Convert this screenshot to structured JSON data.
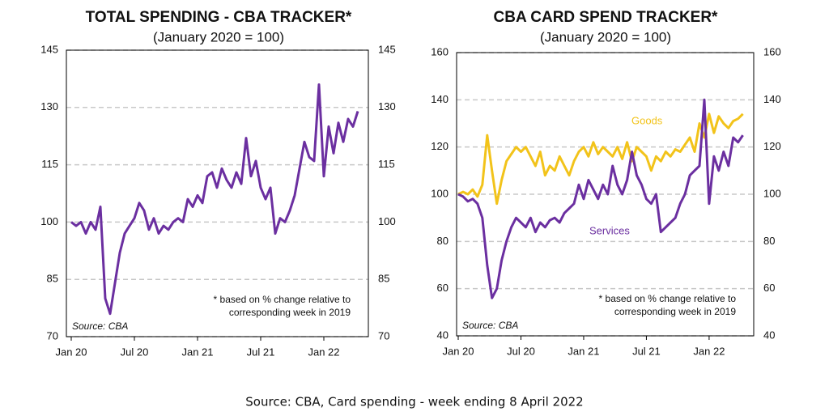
{
  "chart_data": [
    {
      "type": "line",
      "title": "TOTAL SPENDING  - CBA TRACKER*",
      "subtitle": "(January 2020 = 100)",
      "categories": [
        "Jan 20",
        null,
        null,
        null,
        null,
        null,
        null,
        null,
        null,
        null,
        null,
        null,
        null,
        "Jul 20",
        null,
        null,
        null,
        null,
        null,
        null,
        null,
        null,
        null,
        null,
        null,
        null,
        "Jan 21",
        null,
        null,
        null,
        null,
        null,
        null,
        null,
        null,
        null,
        null,
        null,
        null,
        "Jul 21",
        null,
        null,
        null,
        null,
        null,
        null,
        null,
        null,
        null,
        null,
        null,
        null,
        "Jan 22",
        null,
        null,
        null,
        null,
        null,
        null,
        null
      ],
      "series": [
        {
          "name": "Total spending",
          "color": "#6b2fa0",
          "values": [
            100,
            99,
            100,
            97,
            100,
            98,
            104,
            80,
            76,
            84,
            92,
            97,
            99,
            101,
            105,
            103,
            98,
            101,
            97,
            99,
            98,
            100,
            101,
            100,
            106,
            104,
            107,
            105,
            112,
            113,
            109,
            114,
            111,
            109,
            113,
            110,
            122,
            112,
            116,
            109,
            106,
            109,
            97,
            101,
            100,
            103,
            107,
            114,
            121,
            117,
            116,
            136,
            112,
            125,
            118,
            126,
            121,
            127,
            125,
            129
          ]
        }
      ],
      "ylim": [
        70,
        145
      ],
      "yticks": [
        70,
        85,
        100,
        115,
        130,
        145
      ],
      "y2lim": [
        70,
        145
      ],
      "y2ticks": [
        70,
        85,
        100,
        115,
        130,
        145
      ],
      "grid": true,
      "show_legend_names": false,
      "annotations": [
        "*   based on % change relative to",
        "corresponding week in 2019"
      ],
      "source": "Source:  CBA"
    },
    {
      "type": "line",
      "title": "CBA CARD SPEND TRACKER*",
      "subtitle": "(January 2020 = 100)",
      "categories": [
        "Jan 20",
        null,
        null,
        null,
        null,
        null,
        null,
        null,
        null,
        null,
        null,
        null,
        null,
        "Jul 20",
        null,
        null,
        null,
        null,
        null,
        null,
        null,
        null,
        null,
        null,
        null,
        null,
        "Jan 21",
        null,
        null,
        null,
        null,
        null,
        null,
        null,
        null,
        null,
        null,
        null,
        null,
        "Jul 21",
        null,
        null,
        null,
        null,
        null,
        null,
        null,
        null,
        null,
        null,
        null,
        null,
        "Jan 22",
        null,
        null,
        null,
        null,
        null,
        null,
        null
      ],
      "series": [
        {
          "name": "Goods",
          "color": "#f2c31a",
          "values": [
            100,
            101,
            100,
            102,
            99,
            104,
            125,
            110,
            96,
            106,
            114,
            117,
            120,
            118,
            120,
            116,
            112,
            118,
            108,
            112,
            110,
            116,
            112,
            108,
            114,
            118,
            120,
            116,
            122,
            117,
            120,
            118,
            116,
            120,
            115,
            122,
            114,
            120,
            118,
            116,
            110,
            116,
            114,
            118,
            116,
            119,
            118,
            121,
            124,
            118,
            130,
            124,
            134,
            126,
            133,
            130,
            128,
            131,
            132,
            134
          ]
        },
        {
          "name": "Services",
          "color": "#6b2fa0",
          "values": [
            100,
            99,
            97,
            98,
            96,
            90,
            70,
            56,
            60,
            72,
            80,
            86,
            90,
            88,
            86,
            90,
            84,
            88,
            86,
            89,
            90,
            88,
            92,
            94,
            96,
            104,
            98,
            106,
            102,
            98,
            104,
            100,
            112,
            104,
            100,
            106,
            118,
            108,
            104,
            98,
            96,
            100,
            84,
            86,
            88,
            90,
            96,
            100,
            108,
            110,
            112,
            140,
            96,
            116,
            110,
            118,
            112,
            124,
            122,
            125
          ]
        }
      ],
      "ylim": [
        40,
        160
      ],
      "yticks": [
        40,
        60,
        80,
        100,
        120,
        140,
        160
      ],
      "y2lim": [
        40,
        160
      ],
      "y2ticks": [
        40,
        60,
        80,
        100,
        120,
        140,
        160
      ],
      "grid": true,
      "show_legend_names": true,
      "annotations": [
        "*   based on % change relative to",
        "corresponding week in 2019"
      ],
      "source": "Source:  CBA"
    }
  ],
  "footer": "Source: CBA, Card spending - week ending 8 April 2022"
}
